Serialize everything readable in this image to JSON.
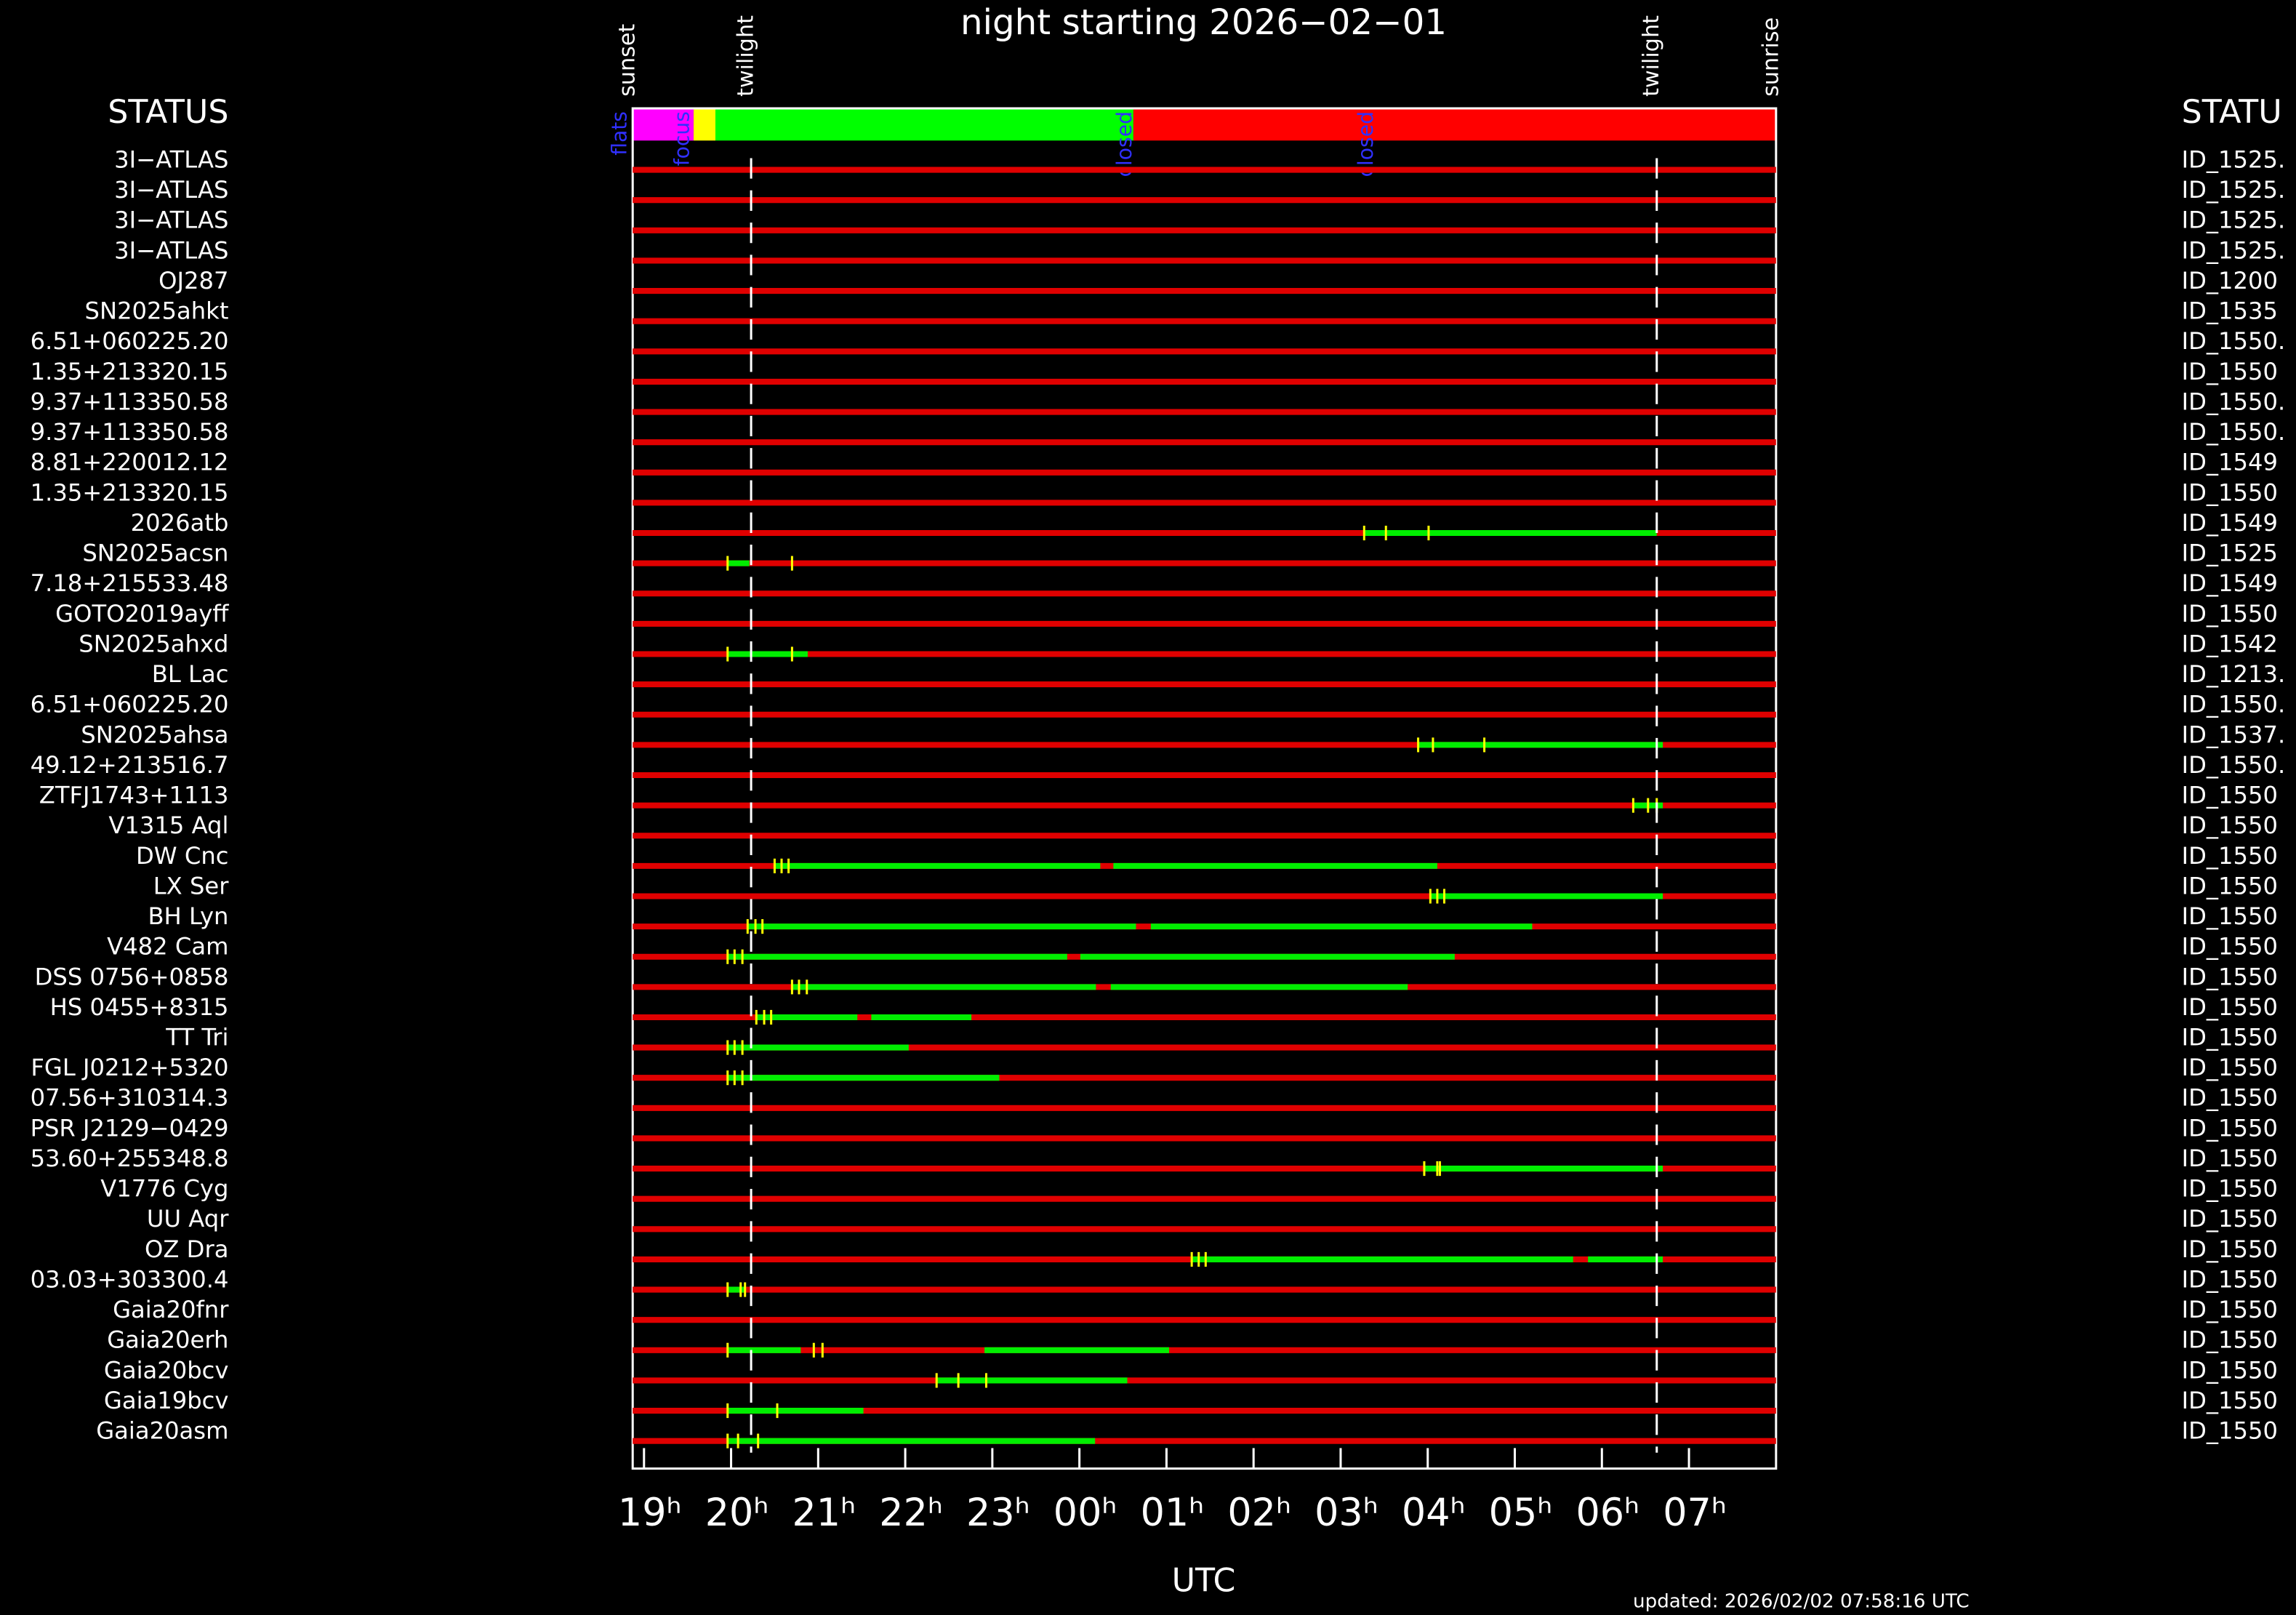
{
  "chart_data": {
    "type": "timeline",
    "title": "night starting 2026−02−01",
    "x_label": "UTC",
    "left_header": "STATUS",
    "right_header": "STATU",
    "updated": "updated: 2026/02/02 07:58:16 UTC",
    "xlim": [
      18.87,
      32.0
    ],
    "xticks": [
      {
        "value": 19,
        "label": "19ʰ"
      },
      {
        "value": 20,
        "label": "20ʰ"
      },
      {
        "value": 21,
        "label": "21ʰ"
      },
      {
        "value": 22,
        "label": "22ʰ"
      },
      {
        "value": 23,
        "label": "23ʰ"
      },
      {
        "value": 24,
        "label": "00ʰ"
      },
      {
        "value": 25,
        "label": "01ʰ"
      },
      {
        "value": 26,
        "label": "02ʰ"
      },
      {
        "value": 27,
        "label": "03ʰ"
      },
      {
        "value": 28,
        "label": "04ʰ"
      },
      {
        "value": 29,
        "label": "05ʰ"
      },
      {
        "value": 30,
        "label": "06ʰ"
      },
      {
        "value": 31,
        "label": "07ʰ"
      }
    ],
    "sun_events": [
      {
        "label": "sunset",
        "time": 18.87,
        "dashed": false
      },
      {
        "label": "twilight",
        "time": 20.23,
        "dashed": true
      },
      {
        "label": "twilight",
        "time": 30.63,
        "dashed": true
      },
      {
        "label": "sunrise",
        "time": 32.0,
        "dashed": false
      }
    ],
    "status_bar": [
      {
        "start": 18.87,
        "end": 19.57,
        "color": "#ff00ff"
      },
      {
        "start": 19.57,
        "end": 19.82,
        "color": "#ffff00"
      },
      {
        "start": 19.82,
        "end": 24.62,
        "color": "#00ff00"
      },
      {
        "start": 24.62,
        "end": 32.0,
        "color": "#ff0000"
      }
    ],
    "status_labels": [
      {
        "text": "flats",
        "time": 18.73
      },
      {
        "text": "focus",
        "time": 19.45
      },
      {
        "text": "closed",
        "time": 24.53
      },
      {
        "text": "closed",
        "time": 27.3
      }
    ],
    "line_color": "#e00000",
    "segment_color": "#00ee00",
    "event_color": "#ffff00",
    "rows": [
      {
        "name": "3I−ATLAS",
        "id": "ID_1525.",
        "segments": [],
        "events": []
      },
      {
        "name": "3I−ATLAS",
        "id": "ID_1525.",
        "segments": [],
        "events": []
      },
      {
        "name": "3I−ATLAS",
        "id": "ID_1525.",
        "segments": [],
        "events": []
      },
      {
        "name": "3I−ATLAS",
        "id": "ID_1525.",
        "segments": [],
        "events": []
      },
      {
        "name": "OJ287",
        "id": "ID_1200",
        "segments": [],
        "events": []
      },
      {
        "name": "SN2025ahkt",
        "id": "ID_1535",
        "segments": [],
        "events": []
      },
      {
        "name": "6.51+060225.20",
        "id": "ID_1550.",
        "segments": [],
        "events": []
      },
      {
        "name": "1.35+213320.15",
        "id": "ID_1550",
        "segments": [],
        "events": []
      },
      {
        "name": "9.37+113350.58",
        "id": "ID_1550.",
        "segments": [],
        "events": []
      },
      {
        "name": "9.37+113350.58",
        "id": "ID_1550.",
        "segments": [],
        "events": []
      },
      {
        "name": "8.81+220012.12",
        "id": "ID_1549",
        "segments": [],
        "events": []
      },
      {
        "name": "1.35+213320.15",
        "id": "ID_1550",
        "segments": [],
        "events": []
      },
      {
        "name": "2026atb",
        "id": "ID_1549",
        "segments": [
          {
            "start": 27.27,
            "end": 30.63
          }
        ],
        "events": [
          27.27,
          27.52,
          28.01
        ]
      },
      {
        "name": "SN2025acsn",
        "id": "ID_1525",
        "segments": [
          {
            "start": 19.96,
            "end": 20.21
          }
        ],
        "events": [
          19.96,
          20.7
        ]
      },
      {
        "name": "7.18+215533.48",
        "id": "ID_1549",
        "segments": [],
        "events": []
      },
      {
        "name": "GOTO2019ayff",
        "id": "ID_1550",
        "segments": [],
        "events": []
      },
      {
        "name": "SN2025ahxd",
        "id": "ID_1542",
        "segments": [
          {
            "start": 19.96,
            "end": 20.88
          }
        ],
        "events": [
          19.96,
          20.7
        ]
      },
      {
        "name": "BL Lac",
        "id": "ID_1213.",
        "segments": [],
        "events": []
      },
      {
        "name": "6.51+060225.20",
        "id": "ID_1550.",
        "segments": [],
        "events": []
      },
      {
        "name": "SN2025ahsa",
        "id": "ID_1537.",
        "segments": [
          {
            "start": 27.89,
            "end": 30.7
          }
        ],
        "events": [
          27.89,
          28.06,
          28.65
        ]
      },
      {
        "name": "49.12+213516.7",
        "id": "ID_1550.",
        "segments": [],
        "events": []
      },
      {
        "name": "ZTFJ1743+1113",
        "id": "ID_1550",
        "segments": [
          {
            "start": 30.36,
            "end": 30.7
          }
        ],
        "events": [
          30.36,
          30.53,
          30.63
        ]
      },
      {
        "name": "V1315 Aql",
        "id": "ID_1550",
        "segments": [],
        "events": []
      },
      {
        "name": "DW Cnc",
        "id": "ID_1550",
        "segments": [
          {
            "start": 20.5,
            "end": 24.24
          },
          {
            "start": 24.39,
            "end": 28.11
          }
        ],
        "events": [
          20.5,
          20.58,
          20.66
        ]
      },
      {
        "name": "LX Ser",
        "id": "ID_1550",
        "segments": [
          {
            "start": 28.03,
            "end": 30.7
          }
        ],
        "events": [
          28.03,
          28.11,
          28.19
        ]
      },
      {
        "name": "BH Lyn",
        "id": "ID_1550",
        "segments": [
          {
            "start": 20.19,
            "end": 24.65
          },
          {
            "start": 24.82,
            "end": 29.2
          }
        ],
        "events": [
          20.19,
          20.28,
          20.36
        ]
      },
      {
        "name": "V482 Cam",
        "id": "ID_1550",
        "segments": [
          {
            "start": 19.96,
            "end": 23.86
          },
          {
            "start": 24.01,
            "end": 28.31
          }
        ],
        "events": [
          19.96,
          20.04,
          20.13
        ]
      },
      {
        "name": "DSS 0756+0858",
        "id": "ID_1550",
        "segments": [
          {
            "start": 20.7,
            "end": 24.19
          },
          {
            "start": 24.36,
            "end": 27.77
          }
        ],
        "events": [
          20.7,
          20.78,
          20.87
        ]
      },
      {
        "name": "HS 0455+8315",
        "id": "ID_1550",
        "segments": [
          {
            "start": 20.29,
            "end": 21.45
          },
          {
            "start": 21.61,
            "end": 22.76
          }
        ],
        "events": [
          20.29,
          20.38,
          20.46
        ]
      },
      {
        "name": "TT Tri",
        "id": "ID_1550",
        "segments": [
          {
            "start": 19.96,
            "end": 22.04
          }
        ],
        "events": [
          19.96,
          20.04,
          20.13
        ]
      },
      {
        "name": "FGL J0212+5320",
        "id": "ID_1550",
        "segments": [
          {
            "start": 19.96,
            "end": 23.08
          }
        ],
        "events": [
          19.96,
          20.04,
          20.13
        ]
      },
      {
        "name": "07.56+310314.3",
        "id": "ID_1550",
        "segments": [],
        "events": []
      },
      {
        "name": "PSR J2129−0429",
        "id": "ID_1550",
        "segments": [],
        "events": []
      },
      {
        "name": "53.60+255348.8",
        "id": "ID_1550",
        "segments": [
          {
            "start": 27.96,
            "end": 30.7
          }
        ],
        "events": [
          27.96,
          28.11,
          28.14
        ]
      },
      {
        "name": "V1776 Cyg",
        "id": "ID_1550",
        "segments": [],
        "events": []
      },
      {
        "name": "UU Aqr",
        "id": "ID_1550",
        "segments": [],
        "events": []
      },
      {
        "name": "OZ Dra",
        "id": "ID_1550",
        "segments": [
          {
            "start": 25.29,
            "end": 29.67
          },
          {
            "start": 29.84,
            "end": 30.7
          }
        ],
        "events": [
          25.29,
          25.37,
          25.45
        ]
      },
      {
        "name": "03.03+303300.4",
        "id": "ID_1550",
        "segments": [
          {
            "start": 19.96,
            "end": 20.16
          }
        ],
        "events": [
          19.96,
          20.11,
          20.16
        ]
      },
      {
        "name": "Gaia20fnr",
        "id": "ID_1550",
        "segments": [],
        "events": []
      },
      {
        "name": "Gaia20erh",
        "id": "ID_1550",
        "segments": [
          {
            "start": 19.96,
            "end": 20.8
          },
          {
            "start": 22.91,
            "end": 25.03
          }
        ],
        "events": [
          19.96,
          20.95,
          21.05
        ]
      },
      {
        "name": "Gaia20bcv",
        "id": "ID_1550",
        "segments": [
          {
            "start": 22.36,
            "end": 24.55
          }
        ],
        "events": [
          22.36,
          22.61,
          22.93
        ]
      },
      {
        "name": "Gaia19bcv",
        "id": "ID_1550",
        "segments": [
          {
            "start": 19.96,
            "end": 21.52
          }
        ],
        "events": [
          19.96,
          20.53
        ]
      },
      {
        "name": "Gaia20asm",
        "id": "ID_1550",
        "segments": [
          {
            "start": 19.96,
            "end": 24.18
          }
        ],
        "events": [
          19.96,
          20.08,
          20.31
        ]
      }
    ]
  }
}
